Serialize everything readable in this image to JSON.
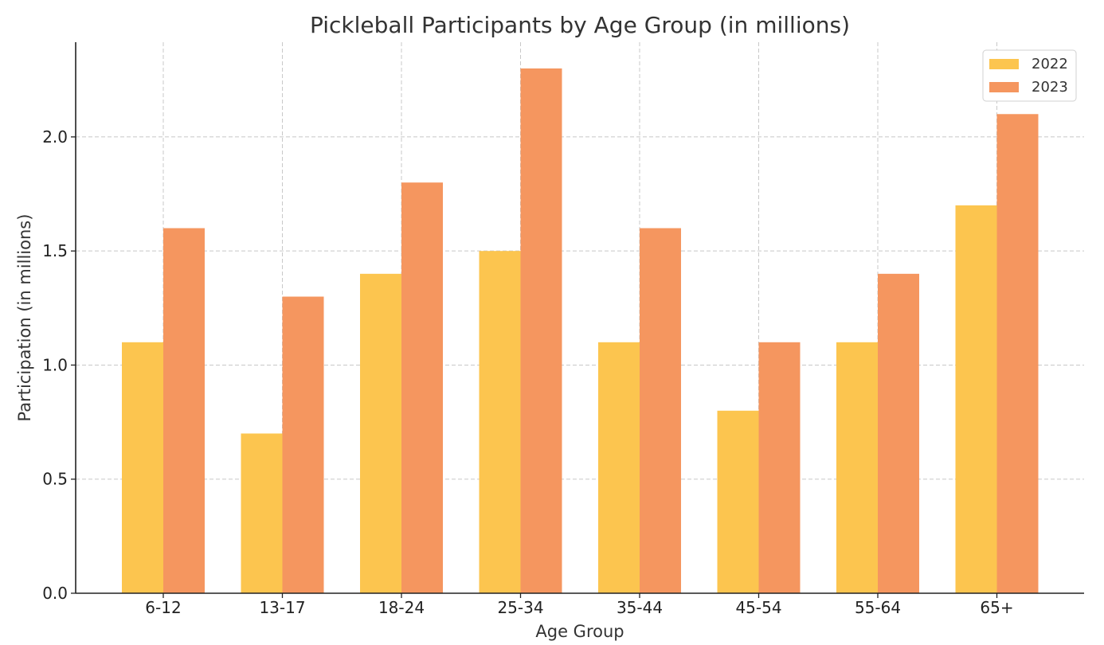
{
  "chart_data": {
    "type": "bar",
    "title": "Pickleball Participants by Age Group (in millions)",
    "xlabel": "Age Group",
    "ylabel": "Participation (in millions)",
    "categories": [
      "6-12",
      "13-17",
      "18-24",
      "25-34",
      "35-44",
      "45-54",
      "55-64",
      "65+"
    ],
    "series": [
      {
        "name": "2022",
        "color": "#FCC54F",
        "values": [
          1.1,
          0.7,
          1.4,
          1.5,
          1.1,
          0.8,
          1.1,
          1.7
        ]
      },
      {
        "name": "2023",
        "color": "#F5965F",
        "values": [
          1.6,
          1.3,
          1.8,
          2.3,
          1.6,
          1.1,
          1.4,
          2.1
        ]
      }
    ],
    "ylim": [
      0,
      2.415
    ],
    "yticks": [
      "0.0",
      "0.5",
      "1.0",
      "1.5",
      "2.0"
    ],
    "grid": true,
    "legend": "top-right"
  }
}
